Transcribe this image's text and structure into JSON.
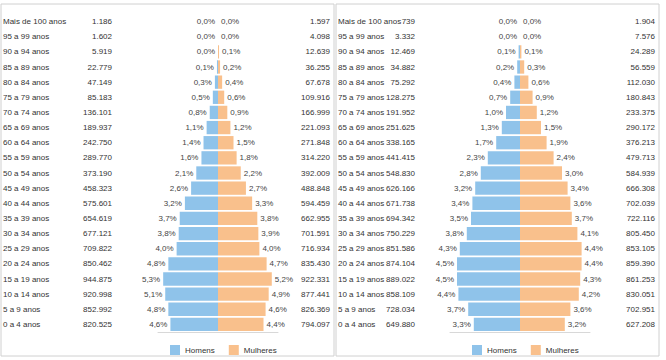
{
  "chart_data": [
    {
      "type": "bar",
      "orientation": "horizontal",
      "data_labels": true,
      "legend": "bottom",
      "tick_labels": "y",
      "grid": false,
      "categories": [
        "Mais de 100 anos",
        "95 a 99 anos",
        "90 a 94 anos",
        "85 a 89 anos",
        "80 a 84 anos",
        "75 a 79 anos",
        "70 a 74 anos",
        "65 a 69 anos",
        "60 a 64 anos",
        "55 a 59 anos",
        "50 a 54 anos",
        "45 a 49 anos",
        "40 a 44 anos",
        "35 a 39 anos",
        "30 a 34 anos",
        "25 a 29 anos",
        "20 a 24 anos",
        "15 a 19 anos",
        "10 a 14 anos",
        "5 a 9 anos",
        "0 a 4 anos"
      ],
      "xlim": [
        0,
        5.8
      ],
      "series": [
        {
          "name": "Homens",
          "color": "#8fc3ea",
          "values": [
            0,
            0,
            0,
            0.1,
            0.3,
            0.5,
            0.8,
            1.1,
            1.4,
            1.6,
            2.1,
            2.6,
            3.2,
            3.7,
            3.8,
            4.0,
            4.8,
            5.3,
            5.1,
            4.8,
            4.6
          ],
          "value_labels": [
            "0,0%",
            "0,0%",
            "0,0%",
            "0,1%",
            "0,3%",
            "0,5%",
            "0,8%",
            "1,1%",
            "1,4%",
            "1,6%",
            "2,1%",
            "2,6%",
            "3,2%",
            "3,7%",
            "3,8%",
            "4,0%",
            "4,8%",
            "5,3%",
            "5,1%",
            "4,8%",
            "4,6%"
          ],
          "population": [
            1186,
            1602,
            5919,
            22779,
            47149,
            85183,
            136101,
            189937,
            242750,
            289770,
            373190,
            458323,
            575601,
            654619,
            677121,
            709822,
            850462,
            944875,
            920998,
            852992,
            820525
          ],
          "population_labels": [
            "1.186",
            "1.602",
            "5.919",
            "22.779",
            "47.149",
            "85.183",
            "136.101",
            "189.937",
            "242.750",
            "289.770",
            "373.190",
            "458.323",
            "575.601",
            "654.619",
            "677.121",
            "709.822",
            "850.462",
            "944.875",
            "920.998",
            "852.992",
            "820.525"
          ]
        },
        {
          "name": "Mulheres",
          "color": "#f9c08c",
          "values": [
            0,
            0,
            0.1,
            0.2,
            0.4,
            0.6,
            0.9,
            1.2,
            1.5,
            1.8,
            2.2,
            2.7,
            3.3,
            3.8,
            3.9,
            4.0,
            4.7,
            5.2,
            4.9,
            4.6,
            4.4
          ],
          "value_labels": [
            "0,0%",
            "0,0%",
            "0,1%",
            "0,2%",
            "0,4%",
            "0,6%",
            "0,9%",
            "1,2%",
            "1,5%",
            "1,8%",
            "2,2%",
            "2,7%",
            "3,3%",
            "3,8%",
            "3,9%",
            "4,0%",
            "4,7%",
            "5,2%",
            "4,9%",
            "4,6%",
            "4,4%"
          ],
          "population": [
            1597,
            4098,
            12639,
            36255,
            67678,
            109916,
            166999,
            221093,
            271848,
            314220,
            392009,
            488848,
            594459,
            662955,
            701591,
            716934,
            835430,
            922331,
            877441,
            826369,
            794097
          ],
          "population_labels": [
            "1.597",
            "4.098",
            "12.639",
            "36.255",
            "67.678",
            "109.916",
            "166.999",
            "221.093",
            "271.848",
            "314.220",
            "392.009",
            "488.848",
            "594.459",
            "662.955",
            "701.591",
            "716.934",
            "835.430",
            "922.331",
            "877.441",
            "826.369",
            "794.097"
          ]
        }
      ]
    },
    {
      "type": "bar",
      "orientation": "horizontal",
      "data_labels": true,
      "legend": "bottom",
      "tick_labels": "y",
      "grid": false,
      "categories": [
        "Mais de 100 anos",
        "95 a 99 anos",
        "90 a 94 anos",
        "85 a 89 anos",
        "80 a 84 anos",
        "75 a 79 anos",
        "70 a 74 anos",
        "65 a 69 anos",
        "60 a 64 anos",
        "55 a 59 anos",
        "50 a 54 anos",
        "45 a 49 anos",
        "40 a 44 anos",
        "35 a 39 anos",
        "30 a 34 anos",
        "25 a 29 anos",
        "20 a 24 anos",
        "15 a 19 anos",
        "10 a 14 anos",
        "5 a 9 anos",
        "0 a 4 anos"
      ],
      "xlim": [
        0,
        5.0
      ],
      "series": [
        {
          "name": "Homens",
          "color": "#8fc3ea",
          "values": [
            0,
            0,
            0.1,
            0.2,
            0.4,
            0.7,
            1.0,
            1.3,
            1.7,
            2.3,
            2.8,
            3.2,
            3.4,
            3.5,
            3.8,
            4.3,
            4.5,
            4.5,
            4.4,
            3.7,
            3.3
          ],
          "value_labels": [
            "0,0%",
            "0,0%",
            "0,1%",
            "0,2%",
            "0,4%",
            "0,7%",
            "1,0%",
            "1,3%",
            "1,7%",
            "2,3%",
            "2,8%",
            "3,2%",
            "3,4%",
            "3,5%",
            "3,8%",
            "4,3%",
            "4,5%",
            "4,5%",
            "4,4%",
            "3,7%",
            "3,3%"
          ],
          "population": [
            739,
            3332,
            12469,
            34882,
            75292,
            128275,
            191952,
            251625,
            338165,
            441415,
            548830,
            626166,
            671738,
            694342,
            750229,
            851586,
            874104,
            889022,
            858109,
            728034,
            649880
          ],
          "population_labels": [
            "739",
            "3.332",
            "12.469",
            "34.882",
            "75.292",
            "128.275",
            "191.952",
            "251.625",
            "338.165",
            "441.415",
            "548.830",
            "626.166",
            "671.738",
            "694.342",
            "750.229",
            "851.586",
            "874.104",
            "889.022",
            "858.109",
            "728.034",
            "649.880"
          ]
        },
        {
          "name": "Mulheres",
          "color": "#f9c08c",
          "values": [
            0,
            0,
            0.1,
            0.3,
            0.6,
            0.9,
            1.2,
            1.5,
            1.9,
            2.4,
            3.0,
            3.4,
            3.6,
            3.7,
            4.1,
            4.4,
            4.4,
            4.3,
            4.2,
            3.6,
            3.2
          ],
          "value_labels": [
            "0,0%",
            "0,0%",
            "0,1%",
            "0,3%",
            "0,6%",
            "0,9%",
            "1,2%",
            "1,5%",
            "1,9%",
            "2,4%",
            "3,0%",
            "3,4%",
            "3,6%",
            "3,7%",
            "4,1%",
            "4,4%",
            "4,4%",
            "4,3%",
            "4,2%",
            "3,6%",
            "3,2%"
          ],
          "population": [
            1904,
            7576,
            24289,
            56559,
            112030,
            180843,
            233375,
            290172,
            376213,
            479713,
            584939,
            666308,
            702039,
            722116,
            805450,
            853105,
            859390,
            861253,
            830051,
            702951,
            627208
          ],
          "population_labels": [
            "1.904",
            "7.576",
            "24.289",
            "56.559",
            "112.030",
            "180.843",
            "233.375",
            "290.172",
            "376.213",
            "479.713",
            "584.939",
            "666.308",
            "702.039",
            "722.116",
            "805.450",
            "853.105",
            "859.390",
            "861.253",
            "830.051",
            "702.951",
            "627.208"
          ]
        }
      ]
    }
  ]
}
